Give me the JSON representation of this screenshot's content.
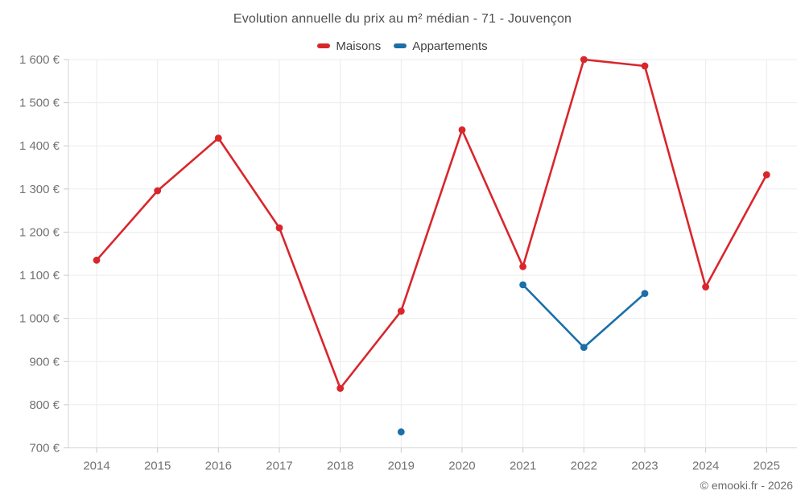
{
  "header": {
    "title": "Evolution annuelle du prix au m² médian - 71 - Jouvençon"
  },
  "chart_data": {
    "type": "line",
    "title": "Evolution annuelle du prix au m² médian - 71 - Jouvençon",
    "x_labels": [
      "2014",
      "2015",
      "2016",
      "2017",
      "2018",
      "2019",
      "2020",
      "2021",
      "2022",
      "2023",
      "2024",
      "2025"
    ],
    "y_ticks": [
      700,
      800,
      900,
      1000,
      1100,
      1200,
      1300,
      1400,
      1500,
      1600
    ],
    "y_tick_labels": [
      "700 €",
      "800 €",
      "900 €",
      "1 000 €",
      "1 100 €",
      "1 200 €",
      "1 300 €",
      "1 400 €",
      "1 500 €",
      "1 600 €"
    ],
    "ylim": [
      700,
      1600
    ],
    "grid": true,
    "legend_position": "top",
    "unit": "€",
    "series": [
      {
        "name": "Maisons",
        "color": "#d9262c",
        "points": [
          [
            2014,
            1135
          ],
          [
            2015,
            1296
          ],
          [
            2016,
            1418
          ],
          [
            2017,
            1210
          ],
          [
            2018,
            838
          ],
          [
            2019,
            1017
          ],
          [
            2020,
            1437
          ],
          [
            2021,
            1120
          ],
          [
            2022,
            1600
          ],
          [
            2023,
            1585
          ],
          [
            2024,
            1073
          ],
          [
            2025,
            1333
          ]
        ]
      },
      {
        "name": "Appartements",
        "color": "#1c6fa8",
        "points": [
          [
            2019,
            737
          ],
          [
            2021,
            1078
          ],
          [
            2022,
            933
          ],
          [
            2023,
            1058
          ]
        ]
      }
    ]
  },
  "footer": {
    "copyright": "© emooki.fr - 2026"
  },
  "colors": {
    "grid": "#ebebeb",
    "axis": "#d4d4d4",
    "tick": "#c9c9c9",
    "axis_text": "#737373"
  }
}
